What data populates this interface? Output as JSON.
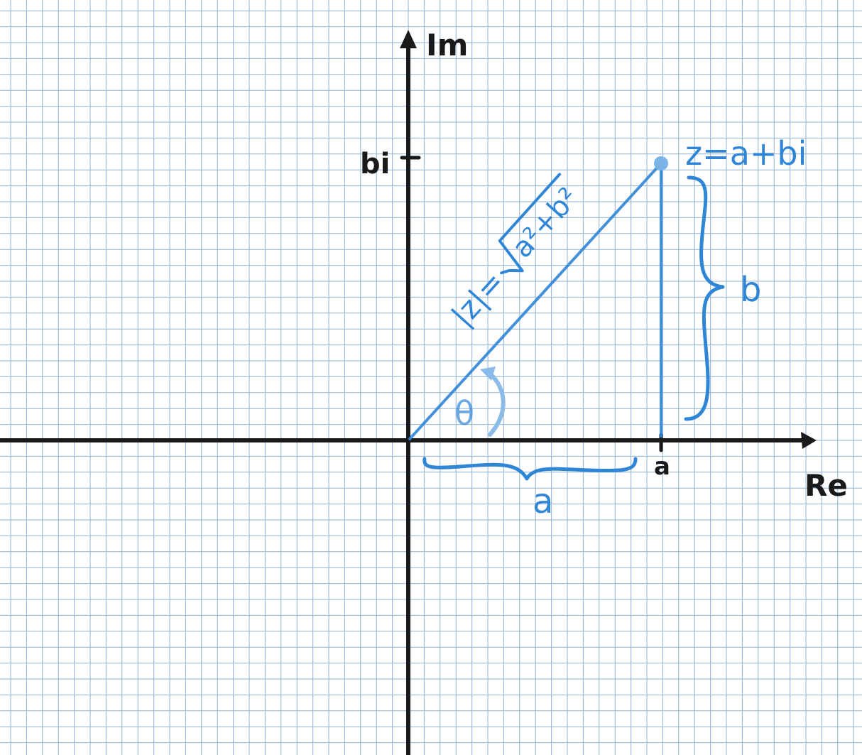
{
  "axes": {
    "imaginary_label": "Im",
    "real_label": "Re",
    "tick_bi": "bi",
    "tick_a": "a"
  },
  "point": {
    "label": "z=a+bi"
  },
  "modulus": {
    "lhs": "|z|=",
    "radicand": "a²+b²"
  },
  "angle": {
    "label": "θ"
  },
  "braces": {
    "vertical_label": "b",
    "horizontal_label": "a"
  },
  "colors": {
    "grid": "#7fa6cf",
    "axis": "#1a1a1a",
    "accent": "#2f86d6"
  }
}
